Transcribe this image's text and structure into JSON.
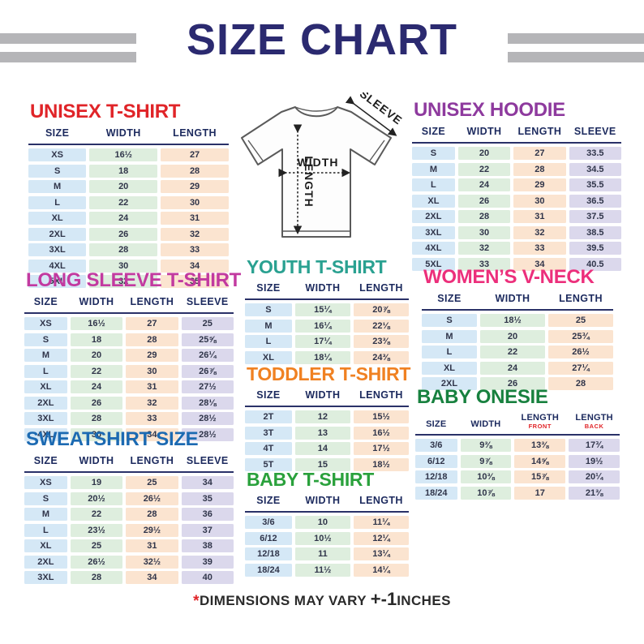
{
  "header": {
    "title": "SIZE CHART"
  },
  "diagram": {
    "width_label": "WIDTH",
    "length_label": "LENGTH",
    "sleeve_label": "SLEEVE"
  },
  "tables": {
    "unisex_tshirt": {
      "title": "UNISEX T-SHIRT",
      "title_color": "#e02428",
      "headers": [
        "SIZE",
        "WIDTH",
        "LENGTH"
      ],
      "rows": [
        [
          "XS",
          "16½",
          "27"
        ],
        [
          "S",
          "18",
          "28"
        ],
        [
          "M",
          "20",
          "29"
        ],
        [
          "L",
          "22",
          "30"
        ],
        [
          "XL",
          "24",
          "31"
        ],
        [
          "2XL",
          "26",
          "32"
        ],
        [
          "3XL",
          "28",
          "33"
        ],
        [
          "4XL",
          "30",
          "34"
        ],
        [
          "5XL",
          "32",
          "35"
        ]
      ]
    },
    "unisex_hoodie": {
      "title": "UNISEX HOODIE",
      "title_color": "#8e3a9e",
      "headers": [
        "SIZE",
        "WIDTH",
        "LENGTH",
        "SLEEVE"
      ],
      "rows": [
        [
          "S",
          "20",
          "27",
          "33.5"
        ],
        [
          "M",
          "22",
          "28",
          "34.5"
        ],
        [
          "L",
          "24",
          "29",
          "35.5"
        ],
        [
          "XL",
          "26",
          "30",
          "36.5"
        ],
        [
          "2XL",
          "28",
          "31",
          "37.5"
        ],
        [
          "3XL",
          "30",
          "32",
          "38.5"
        ],
        [
          "4XL",
          "32",
          "33",
          "39.5"
        ],
        [
          "5XL",
          "33",
          "34",
          "40.5"
        ]
      ]
    },
    "long_sleeve": {
      "title": "LONG SLEEVE T-SHIRT",
      "title_color": "#c23aa0",
      "headers": [
        "SIZE",
        "WIDTH",
        "LENGTH",
        "SLEEVE"
      ],
      "rows": [
        [
          "XS",
          "16½",
          "27",
          "25"
        ],
        [
          "S",
          "18",
          "28",
          "25⅝"
        ],
        [
          "M",
          "20",
          "29",
          "26¼"
        ],
        [
          "L",
          "22",
          "30",
          "26⅞"
        ],
        [
          "XL",
          "24",
          "31",
          "27½"
        ],
        [
          "2XL",
          "26",
          "32",
          "28⅛"
        ],
        [
          "3XL",
          "28",
          "33",
          "28½"
        ],
        [
          "4XL",
          "30",
          "34",
          "28½"
        ]
      ]
    },
    "sweatshirt": {
      "title": "SWEATSHIRT SIZE",
      "title_color": "#1c6ab2",
      "headers": [
        "SIZE",
        "WIDTH",
        "LENGTH",
        "SLEEVE"
      ],
      "rows": [
        [
          "XS",
          "19",
          "25",
          "34"
        ],
        [
          "S",
          "20½",
          "26½",
          "35"
        ],
        [
          "M",
          "22",
          "28",
          "36"
        ],
        [
          "L",
          "23½",
          "29½",
          "37"
        ],
        [
          "XL",
          "25",
          "31",
          "38"
        ],
        [
          "2XL",
          "26½",
          "32½",
          "39"
        ],
        [
          "3XL",
          "28",
          "34",
          "40"
        ]
      ]
    },
    "youth_tshirt": {
      "title": "YOUTH T-SHIRT",
      "title_color": "#2aa191",
      "headers": [
        "SIZE",
        "WIDTH",
        "LENGTH"
      ],
      "rows": [
        [
          "S",
          "15¼",
          "20⅞"
        ],
        [
          "M",
          "16¼",
          "22⅛"
        ],
        [
          "L",
          "17¼",
          "23⅜"
        ],
        [
          "XL",
          "18¼",
          "24⅜"
        ]
      ]
    },
    "toddler_tshirt": {
      "title": "TODDLER T-SHIRT",
      "title_color": "#f08122",
      "headers": [
        "SIZE",
        "WIDTH",
        "LENGTH"
      ],
      "rows": [
        [
          "2T",
          "12",
          "15½"
        ],
        [
          "3T",
          "13",
          "16½"
        ],
        [
          "4T",
          "14",
          "17½"
        ],
        [
          "5T",
          "15",
          "18½"
        ]
      ]
    },
    "baby_tshirt": {
      "title": "BABY T-SHIRT",
      "title_color": "#2aa13c",
      "headers": [
        "SIZE",
        "WIDTH",
        "LENGTH"
      ],
      "rows": [
        [
          "3/6",
          "10",
          "11¼"
        ],
        [
          "6/12",
          "10½",
          "12¼"
        ],
        [
          "12/18",
          "11",
          "13¼"
        ],
        [
          "18/24",
          "11½",
          "14¼"
        ]
      ]
    },
    "womens_vneck": {
      "title": "WOMEN’S V-NECK",
      "title_color": "#ec2f7b",
      "headers": [
        "SIZE",
        "WIDTH",
        "LENGTH"
      ],
      "rows": [
        [
          "S",
          "18½",
          "25"
        ],
        [
          "M",
          "20",
          "25¾"
        ],
        [
          "L",
          "22",
          "26½"
        ],
        [
          "XL",
          "24",
          "27¼"
        ],
        [
          "2XL",
          "26",
          "28"
        ]
      ]
    },
    "baby_onesie": {
      "title": "BABY ONESIE",
      "title_color": "#18813f",
      "headers": [
        "SIZE",
        "WIDTH",
        {
          "t": "LENGTH",
          "sub": "FRONT"
        },
        {
          "t": "LENGTH",
          "sub": "BACK"
        }
      ],
      "rows": [
        [
          "3/6",
          "9⅜",
          "13⅜",
          "17¾"
        ],
        [
          "6/12",
          "9⅞",
          "14⅝",
          "19½"
        ],
        [
          "12/18",
          "10⅜",
          "15⅞",
          "20¼"
        ],
        [
          "18/24",
          "10⅞",
          "17",
          "21⅜"
        ]
      ]
    }
  },
  "footer": {
    "asterisk": "*",
    "note": "DIMENSIONS MAY VARY",
    "tolerance": "+-1",
    "unit": "INCHES"
  },
  "colors": {
    "heading": "#2b2a70",
    "header_bars": "#b5b5b8",
    "table_header_text": "#1c2a5e",
    "size_col": "#d5e8f6",
    "width_col": "#deeede",
    "length_col": "#fbe4d0",
    "sleeve_col": "#dbd8ec",
    "footer_asterisk": "#e02428"
  }
}
